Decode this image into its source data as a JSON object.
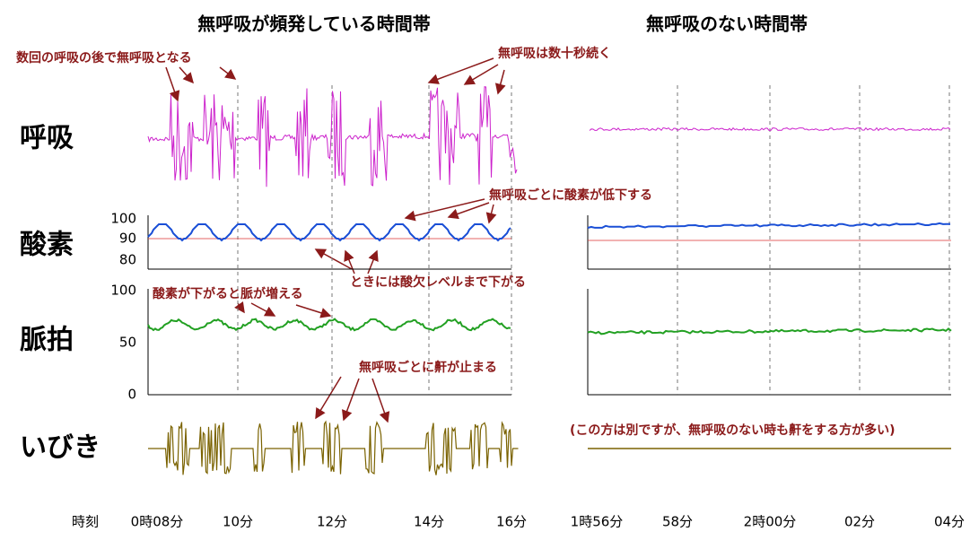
{
  "titles": {
    "left": "無呼吸が頻発している時間帯",
    "right": "無呼吸のない時間帯"
  },
  "rows": [
    "呼吸",
    "酸素",
    "脈拍",
    "いびき"
  ],
  "annotations": [
    "数回の呼吸の後で無呼吸となる",
    "無呼吸は数十秒続く",
    "無呼吸ごとに酸素が低下する",
    "ときには酸欠レベルまで下がる",
    "酸素が下がると脈が増える",
    "無呼吸ごとに鼾が止まる",
    "(この方は別ですが、無呼吸のない時も鼾をする方が多い)"
  ],
  "oxygen_ticks": [
    "100",
    "90",
    "80"
  ],
  "pulse_ticks": [
    "100",
    "50",
    "0"
  ],
  "time_axis": {
    "label": "時刻",
    "left": [
      "0時08分",
      "10分",
      "12分",
      "14分",
      "16分"
    ],
    "right": [
      "1時56分",
      "58分",
      "2時00分",
      "02分",
      "04分"
    ]
  }
}
